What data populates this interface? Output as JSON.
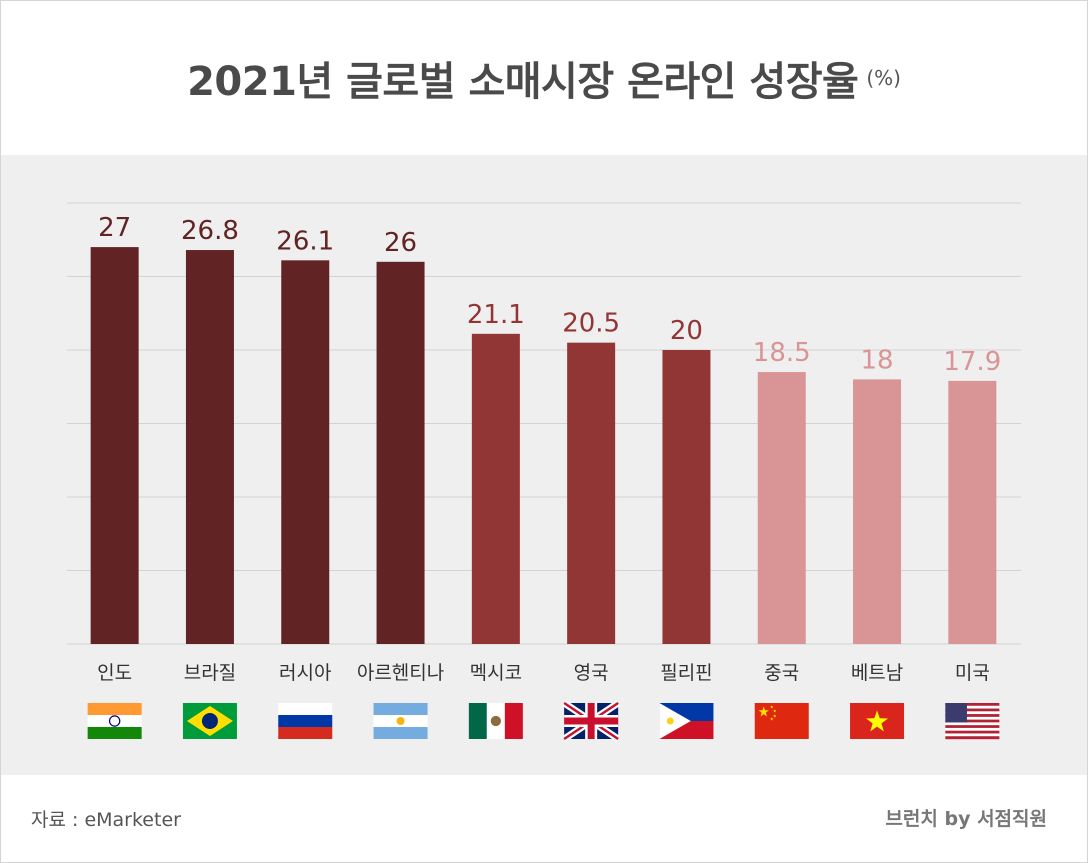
{
  "chart_data": {
    "type": "bar",
    "title": "2021년 글로벌 소매시장 온라인 성장율",
    "unit": "(%)",
    "categories": [
      "인도",
      "브라질",
      "러시아",
      "아르헨티나",
      "멕시코",
      "영국",
      "필리핀",
      "중국",
      "베트남",
      "미국"
    ],
    "values": [
      27,
      26.8,
      26.1,
      26,
      21.1,
      20.5,
      20,
      18.5,
      18,
      17.9
    ],
    "value_labels": [
      "27",
      "26.8",
      "26.1",
      "26",
      "21.1",
      "20.5",
      "20",
      "18.5",
      "18",
      "17.9"
    ],
    "flags": [
      "india-flag",
      "brazil-flag",
      "russia-flag",
      "argentina-flag",
      "mexico-flag",
      "uk-flag",
      "philippines-flag",
      "china-flag",
      "vietnam-flag",
      "usa-flag"
    ],
    "ylim": [
      0,
      30
    ],
    "grid": true,
    "xlabel": "",
    "ylabel": "",
    "bar_colors": [
      "#612324",
      "#612324",
      "#612324",
      "#612324",
      "#923535",
      "#923535",
      "#923535",
      "#d99595",
      "#d99595",
      "#d99595"
    ],
    "label_colors": [
      "#612324",
      "#612324",
      "#612324",
      "#612324",
      "#923535",
      "#923535",
      "#923535",
      "#d99595",
      "#d99595",
      "#d99595"
    ]
  },
  "footer": {
    "source": "자료 : eMarketer",
    "credit": "브런치 by 서점직원"
  }
}
